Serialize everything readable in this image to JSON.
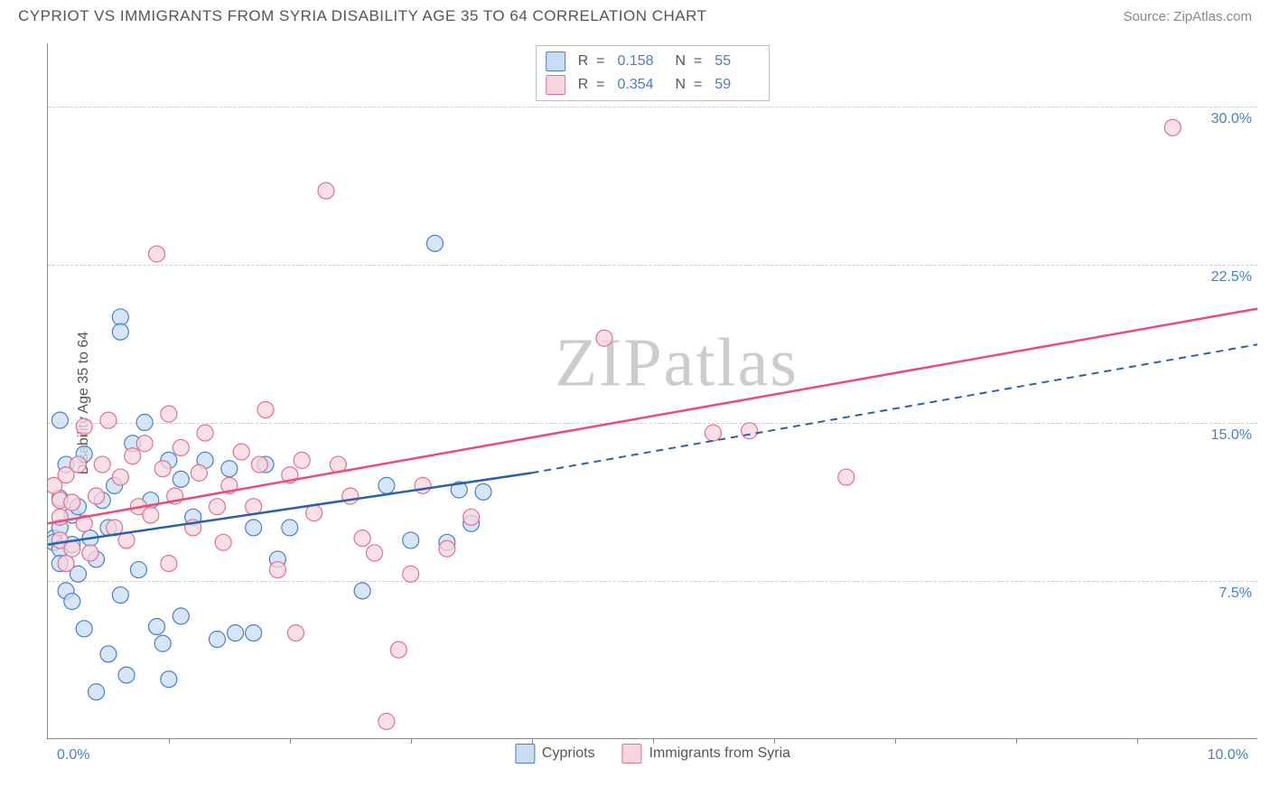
{
  "header": {
    "title": "CYPRIOT VS IMMIGRANTS FROM SYRIA DISABILITY AGE 35 TO 64 CORRELATION CHART",
    "source": "Source: ZipAtlas.com"
  },
  "watermark": "ZIPatlas",
  "chart": {
    "type": "scatter",
    "yaxis_title": "Disability Age 35 to 64",
    "background_color": "#ffffff",
    "grid_color": "#cccccc",
    "axis_color": "#888888",
    "label_color": "#4a7ec7",
    "xlim": [
      0.0,
      10.0
    ],
    "ylim": [
      0.0,
      33.0
    ],
    "yticks": [
      7.5,
      15.0,
      22.5,
      30.0
    ],
    "ytick_labels": [
      "7.5%",
      "15.0%",
      "22.5%",
      "30.0%"
    ],
    "xticks": [
      1.0,
      2.0,
      3.0,
      4.0,
      5.0,
      6.0,
      7.0,
      8.0,
      9.0
    ],
    "xaxis_start_label": "0.0%",
    "xaxis_end_label": "10.0%",
    "marker_radius": 9,
    "marker_stroke_width": 1.2,
    "series": [
      {
        "name": "Cypriots",
        "fill": "#c8ddf3",
        "stroke": "#4a7ec7",
        "line_color": "#2a5fb0",
        "r_value": "0.158",
        "n_value": "55",
        "trend": {
          "x1": 0.0,
          "y1": 9.2,
          "x2": 4.0,
          "y2": 12.6,
          "dash_to_x": 10.0,
          "dash_to_y": 18.7
        },
        "points": [
          [
            0.05,
            9.5
          ],
          [
            0.05,
            9.3
          ],
          [
            0.1,
            11.4
          ],
          [
            0.1,
            10.0
          ],
          [
            0.1,
            9.0
          ],
          [
            0.1,
            8.3
          ],
          [
            0.1,
            15.1
          ],
          [
            0.15,
            13.0
          ],
          [
            0.15,
            7.0
          ],
          [
            0.2,
            10.6
          ],
          [
            0.2,
            9.2
          ],
          [
            0.2,
            6.5
          ],
          [
            0.25,
            11.0
          ],
          [
            0.25,
            7.8
          ],
          [
            0.3,
            13.5
          ],
          [
            0.3,
            5.2
          ],
          [
            0.35,
            9.5
          ],
          [
            0.4,
            2.2
          ],
          [
            0.4,
            8.5
          ],
          [
            0.45,
            11.3
          ],
          [
            0.5,
            10.0
          ],
          [
            0.5,
            4.0
          ],
          [
            0.55,
            12.0
          ],
          [
            0.6,
            20.0
          ],
          [
            0.6,
            19.3
          ],
          [
            0.6,
            6.8
          ],
          [
            0.65,
            3.0
          ],
          [
            0.7,
            14.0
          ],
          [
            0.75,
            8.0
          ],
          [
            0.8,
            15.0
          ],
          [
            0.85,
            11.3
          ],
          [
            0.9,
            5.3
          ],
          [
            0.95,
            4.5
          ],
          [
            1.0,
            13.2
          ],
          [
            1.0,
            2.8
          ],
          [
            1.1,
            12.3
          ],
          [
            1.1,
            5.8
          ],
          [
            1.2,
            10.5
          ],
          [
            1.3,
            13.2
          ],
          [
            1.4,
            4.7
          ],
          [
            1.5,
            12.8
          ],
          [
            1.55,
            5.0
          ],
          [
            1.7,
            10.0
          ],
          [
            1.7,
            5.0
          ],
          [
            1.8,
            13.0
          ],
          [
            1.9,
            8.5
          ],
          [
            2.0,
            10.0
          ],
          [
            2.6,
            7.0
          ],
          [
            2.8,
            12.0
          ],
          [
            3.0,
            9.4
          ],
          [
            3.2,
            23.5
          ],
          [
            3.3,
            9.3
          ],
          [
            3.4,
            11.8
          ],
          [
            3.5,
            10.2
          ],
          [
            3.6,
            11.7
          ]
        ]
      },
      {
        "name": "Immigrants from Syria",
        "fill": "#f7d4de",
        "stroke": "#e0718f",
        "line_color": "#e84d7a",
        "r_value": "0.354",
        "n_value": "59",
        "trend": {
          "x1": 0.0,
          "y1": 10.2,
          "x2": 10.0,
          "y2": 20.4
        },
        "points": [
          [
            0.05,
            12.0
          ],
          [
            0.1,
            11.3
          ],
          [
            0.1,
            10.5
          ],
          [
            0.1,
            9.4
          ],
          [
            0.15,
            12.5
          ],
          [
            0.15,
            8.3
          ],
          [
            0.2,
            11.2
          ],
          [
            0.2,
            9.0
          ],
          [
            0.25,
            13.0
          ],
          [
            0.3,
            14.8
          ],
          [
            0.3,
            10.2
          ],
          [
            0.35,
            8.8
          ],
          [
            0.4,
            11.5
          ],
          [
            0.45,
            13.0
          ],
          [
            0.5,
            15.1
          ],
          [
            0.55,
            10.0
          ],
          [
            0.6,
            12.4
          ],
          [
            0.65,
            9.4
          ],
          [
            0.7,
            13.4
          ],
          [
            0.75,
            11.0
          ],
          [
            0.8,
            14.0
          ],
          [
            0.85,
            10.6
          ],
          [
            0.9,
            23.0
          ],
          [
            0.95,
            12.8
          ],
          [
            1.0,
            15.4
          ],
          [
            1.0,
            8.3
          ],
          [
            1.05,
            11.5
          ],
          [
            1.1,
            13.8
          ],
          [
            1.2,
            10.0
          ],
          [
            1.25,
            12.6
          ],
          [
            1.3,
            14.5
          ],
          [
            1.4,
            11.0
          ],
          [
            1.45,
            9.3
          ],
          [
            1.5,
            12.0
          ],
          [
            1.6,
            13.6
          ],
          [
            1.7,
            11.0
          ],
          [
            1.75,
            13.0
          ],
          [
            1.8,
            15.6
          ],
          [
            1.9,
            8.0
          ],
          [
            2.0,
            12.5
          ],
          [
            2.05,
            5.0
          ],
          [
            2.1,
            13.2
          ],
          [
            2.2,
            10.7
          ],
          [
            2.3,
            26.0
          ],
          [
            2.4,
            13.0
          ],
          [
            2.5,
            11.5
          ],
          [
            2.6,
            9.5
          ],
          [
            2.7,
            8.8
          ],
          [
            2.8,
            0.8
          ],
          [
            2.9,
            4.2
          ],
          [
            3.0,
            7.8
          ],
          [
            3.1,
            12.0
          ],
          [
            3.3,
            9.0
          ],
          [
            3.5,
            10.5
          ],
          [
            4.6,
            19.0
          ],
          [
            5.5,
            14.5
          ],
          [
            5.8,
            14.6
          ],
          [
            6.6,
            12.4
          ],
          [
            9.3,
            29.0
          ]
        ]
      }
    ],
    "legend_bottom": [
      "Cypriots",
      "Immigrants from Syria"
    ]
  }
}
